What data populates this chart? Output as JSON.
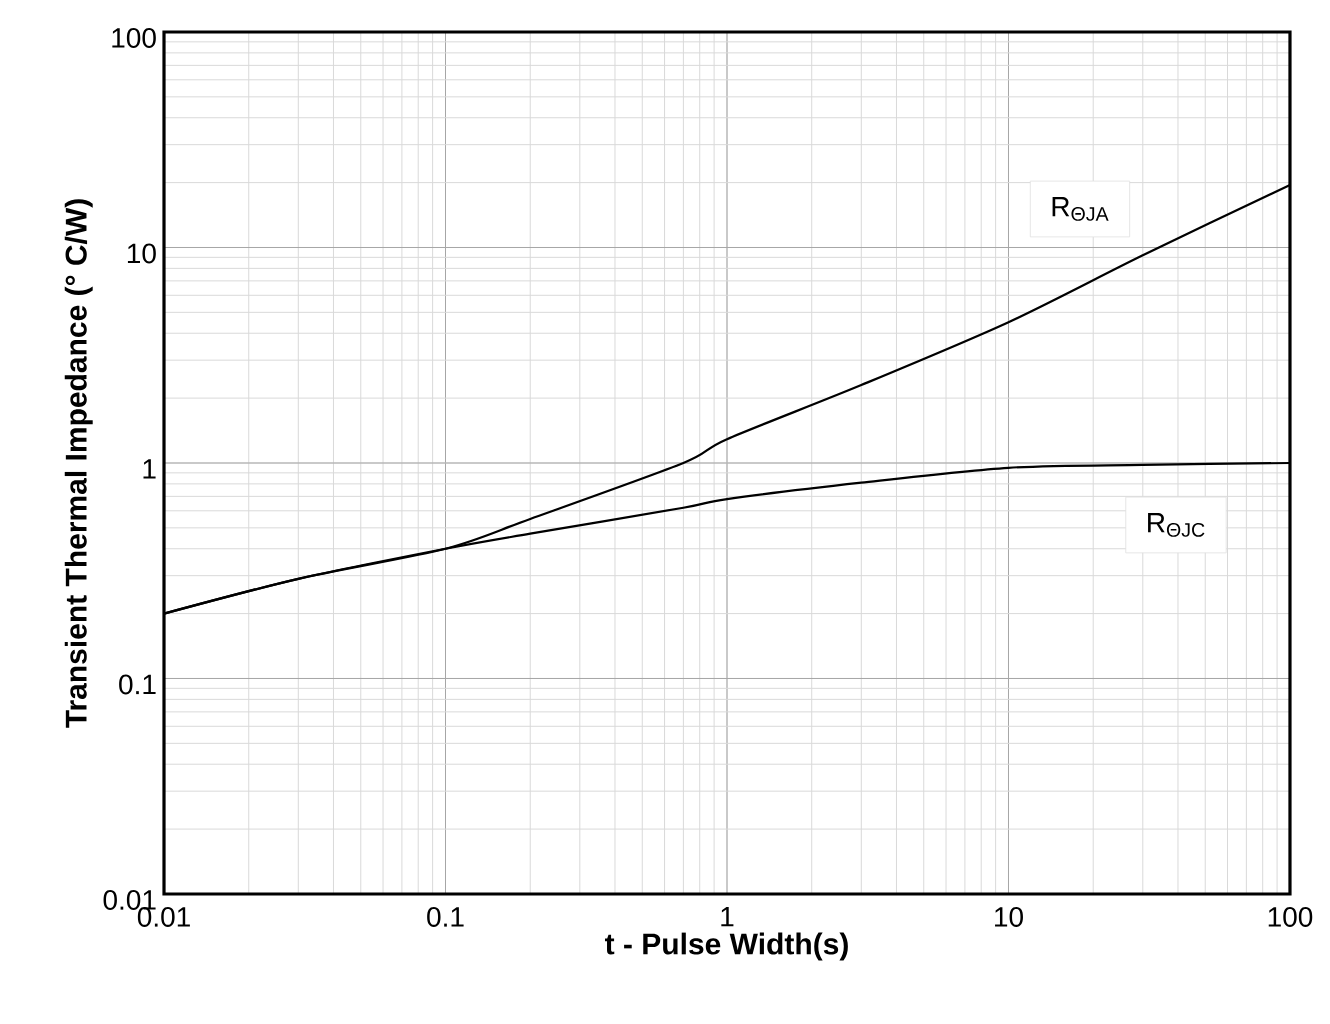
{
  "chart_data": {
    "type": "line",
    "xlabel": "t - Pulse Width(s)",
    "ylabel": "Transient Thermal Impedance (° C/W)",
    "log": "xy",
    "xlim": [
      0.01,
      100
    ],
    "ylim": [
      0.01,
      100
    ],
    "xticks": [
      0.01,
      0.1,
      1,
      10,
      100
    ],
    "yticks": [
      0.01,
      0.1,
      1,
      10,
      100
    ],
    "grid": true,
    "legend": false,
    "marker": "none",
    "line_style": "solid",
    "series": [
      {
        "name": "R$_{ΘJA}$",
        "color": "#000000",
        "x": [
          0.01,
          0.03,
          0.1,
          0.2,
          0.7,
          1,
          3,
          10,
          30,
          100
        ],
        "values": [
          0.2,
          0.29,
          0.4,
          0.55,
          1.0,
          1.29,
          2.3,
          4.5,
          9.2,
          19.5
        ]
      },
      {
        "name": "R$_{ΘJC}$",
        "color": "#000000",
        "x": [
          0.01,
          0.03,
          0.1,
          0.2,
          0.7,
          1,
          3,
          10,
          30,
          100
        ],
        "values": [
          0.2,
          0.29,
          0.4,
          0.47,
          0.62,
          0.68,
          0.81,
          0.95,
          0.98,
          1.0
        ]
      }
    ]
  }
}
